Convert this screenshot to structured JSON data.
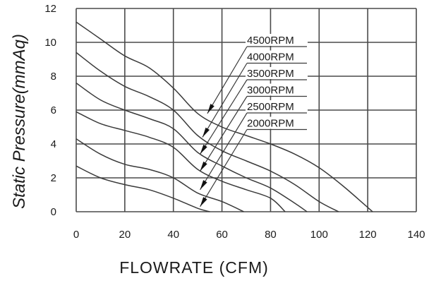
{
  "chart_data": {
    "type": "line",
    "title": "",
    "xlabel": "FLOWRATE (CFM)",
    "ylabel": "Static  Pressure(mmAq)",
    "xlim": [
      0,
      140
    ],
    "ylim": [
      0,
      12
    ],
    "xticks": [
      0,
      20,
      40,
      60,
      80,
      100,
      120,
      140
    ],
    "yticks": [
      0,
      2,
      4,
      6,
      8,
      10,
      12
    ],
    "grid": true,
    "legend_position": "inline-annotations",
    "series": [
      {
        "name": "4500RPM",
        "points": [
          [
            0,
            11.2
          ],
          [
            10,
            10.2
          ],
          [
            20,
            9.2
          ],
          [
            30,
            8.5
          ],
          [
            40,
            7.3
          ],
          [
            50,
            5.8
          ],
          [
            60,
            5.0
          ],
          [
            70,
            4.5
          ],
          [
            80,
            4.0
          ],
          [
            90,
            3.4
          ],
          [
            100,
            2.6
          ],
          [
            110,
            1.5
          ],
          [
            122,
            0
          ]
        ]
      },
      {
        "name": "4000RPM",
        "points": [
          [
            0,
            9.4
          ],
          [
            10,
            8.3
          ],
          [
            20,
            7.4
          ],
          [
            30,
            6.8
          ],
          [
            40,
            6.0
          ],
          [
            50,
            4.5
          ],
          [
            60,
            3.6
          ],
          [
            70,
            3.0
          ],
          [
            80,
            2.4
          ],
          [
            90,
            1.6
          ],
          [
            100,
            0.6
          ],
          [
            108,
            0
          ]
        ]
      },
      {
        "name": "3500RPM",
        "points": [
          [
            0,
            7.6
          ],
          [
            10,
            6.6
          ],
          [
            20,
            6.0
          ],
          [
            30,
            5.5
          ],
          [
            40,
            4.9
          ],
          [
            50,
            3.5
          ],
          [
            60,
            2.7
          ],
          [
            70,
            2.0
          ],
          [
            80,
            1.4
          ],
          [
            90,
            0.5
          ],
          [
            95,
            0
          ]
        ]
      },
      {
        "name": "3000RPM",
        "points": [
          [
            0,
            5.9
          ],
          [
            10,
            5.2
          ],
          [
            20,
            4.8
          ],
          [
            30,
            4.4
          ],
          [
            40,
            3.8
          ],
          [
            50,
            2.5
          ],
          [
            60,
            1.8
          ],
          [
            70,
            1.3
          ],
          [
            80,
            0.8
          ],
          [
            86,
            0
          ]
        ]
      },
      {
        "name": "2500RPM",
        "points": [
          [
            0,
            4.3
          ],
          [
            10,
            3.4
          ],
          [
            20,
            2.8
          ],
          [
            30,
            2.5
          ],
          [
            40,
            2.0
          ],
          [
            50,
            1.1
          ],
          [
            60,
            0.6
          ],
          [
            69,
            0
          ]
        ]
      },
      {
        "name": "2000RPM",
        "points": [
          [
            0,
            2.7
          ],
          [
            10,
            2.0
          ],
          [
            20,
            1.6
          ],
          [
            30,
            1.3
          ],
          [
            40,
            0.8
          ],
          [
            50,
            0.2
          ],
          [
            55,
            0
          ]
        ]
      }
    ],
    "annotations": [
      {
        "text": "4500RPM",
        "arrow_to": [
          54,
          5.8
        ]
      },
      {
        "text": "4000RPM",
        "arrow_to": [
          52,
          4.4
        ]
      },
      {
        "text": "3500RPM",
        "arrow_to": [
          51,
          3.4
        ]
      },
      {
        "text": "3000RPM",
        "arrow_to": [
          51,
          2.4
        ]
      },
      {
        "text": "2500RPM",
        "arrow_to": [
          51,
          1.3
        ]
      },
      {
        "text": "2000RPM",
        "arrow_to": [
          51,
          0.3
        ]
      }
    ]
  },
  "colors": {
    "line": "#3a3a3a",
    "grid": "#4a4a4a",
    "text": "#1a1a1a",
    "background": "#ffffff"
  }
}
